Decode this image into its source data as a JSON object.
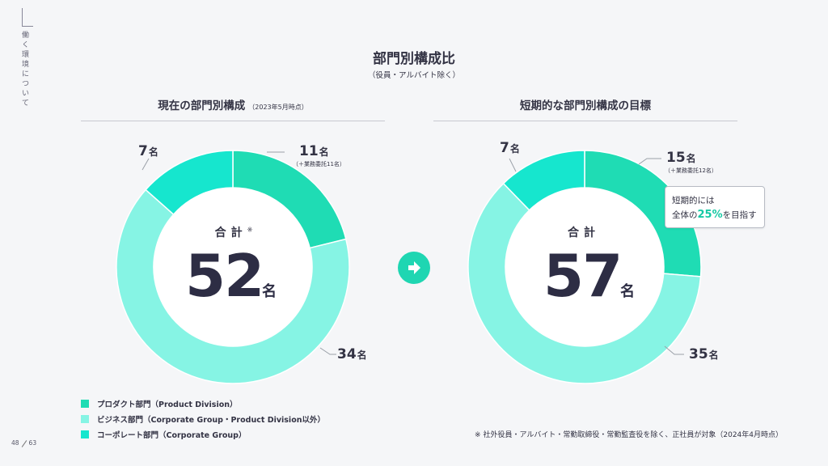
{
  "side_label": "働く環境について",
  "title": "部門別構成比",
  "subtitle": "（役員・アルバイト除く）",
  "colors": {
    "product": "#1fdcb4",
    "business": "#86f4e4",
    "corporate": "#16e6ce",
    "accent": "#16c9a4"
  },
  "left": {
    "title": "現在の部門別構成",
    "title_note": "（2023年5月時点）",
    "total_label": "合計",
    "total_mark": "※",
    "total_value": "52",
    "total_unit": "名",
    "labels": {
      "product": "11",
      "product_sub": "（＋業務委託11名）",
      "business": "34",
      "corporate": "7",
      "unit": "名"
    }
  },
  "right": {
    "title": "短期的な部門別構成の目標",
    "total_label": "合計",
    "total_value": "57",
    "total_unit": "名",
    "labels": {
      "product": "15",
      "product_sub": "（＋業務委託12名）",
      "business": "35",
      "corporate": "7",
      "unit": "名"
    },
    "callout": {
      "line1": "短期的には",
      "line2_pre": "全体の",
      "line2_pct": "25%",
      "line2_post": "を目指す"
    }
  },
  "legend": [
    {
      "label": "プロダクト部門（Product Division）"
    },
    {
      "label": "ビジネス部門（Corporate Group・Product Division以外）"
    },
    {
      "label": "コーポレート部門（Corporate Group）"
    }
  ],
  "footnote": "※ 社外役員・アルバイト・常勤取締役・常勤監査役を除く、正社員が対象（2024年4月時点）",
  "page": {
    "current": "48",
    "total": "63"
  },
  "chart_data": [
    {
      "type": "pie",
      "title": "現在の部門別構成",
      "categories": [
        "プロダクト部門（Product Division）",
        "ビジネス部門（Corporate Group・Product Division以外）",
        "コーポレート部門（Corporate Group）"
      ],
      "values": [
        11,
        34,
        7
      ],
      "total": 52
    },
    {
      "type": "pie",
      "title": "短期的な部門別構成の目標",
      "categories": [
        "プロダクト部門（Product Division）",
        "ビジネス部門（Corporate Group・Product Division以外）",
        "コーポレート部門（Corporate Group）"
      ],
      "values": [
        15,
        35,
        7
      ],
      "total": 57
    }
  ]
}
